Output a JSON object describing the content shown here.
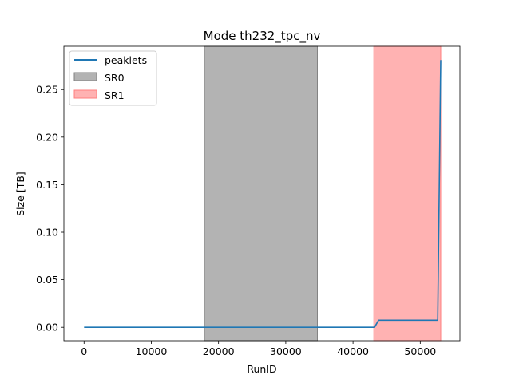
{
  "chart_data": {
    "type": "line",
    "title": "Mode th232_tpc_nv",
    "xlabel": "RunID",
    "ylabel": "Size [TB]",
    "xlim": [
      -3000,
      55900
    ],
    "ylim": [
      -0.0141,
      0.2955
    ],
    "xticks": [
      0,
      10000,
      20000,
      30000,
      40000,
      50000
    ],
    "xtick_labels": [
      "0",
      "10000",
      "20000",
      "30000",
      "40000",
      "50000"
    ],
    "yticks": [
      0.0,
      0.05,
      0.1,
      0.15,
      0.2,
      0.25
    ],
    "ytick_labels": [
      "0.00",
      "0.05",
      "0.10",
      "0.15",
      "0.20",
      "0.25"
    ],
    "grid": false,
    "legend_position": "top-left",
    "series": [
      {
        "name": "peaklets",
        "color": "#1f77b4",
        "x": [
          0,
          43200,
          43800,
          52600,
          53050
        ],
        "y": [
          0.0,
          0.0,
          0.0075,
          0.0075,
          0.281
        ]
      }
    ],
    "spans": [
      {
        "name": "SR0",
        "x0": 17900,
        "x1": 34700,
        "color": "#808080",
        "opacity": 0.6
      },
      {
        "name": "SR1",
        "x0": 43100,
        "x1": 53050,
        "color": "#ff7f7f",
        "opacity": 0.6
      }
    ]
  }
}
